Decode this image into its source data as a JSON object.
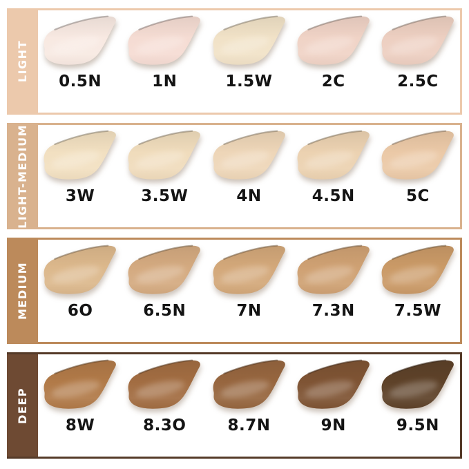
{
  "chart_data": {
    "type": "table",
    "description": "Foundation shade swatch chart: 4 depth categories x 5 shades",
    "rows": [
      {
        "category": "LIGHT",
        "band_color": "#ecc9ac",
        "border_color": "#ecc9ac",
        "shades": [
          {
            "label": "0.5N",
            "color": "#f8e9e2"
          },
          {
            "label": "1N",
            "color": "#f5dcd3"
          },
          {
            "label": "1.5W",
            "color": "#f1e2c7"
          },
          {
            "label": "2C",
            "color": "#f0d3c6"
          },
          {
            "label": "2.5C",
            "color": "#edcfc1"
          }
        ]
      },
      {
        "category": "LIGHT-MEDIUM",
        "band_color": "#d9b28e",
        "border_color": "#d9b28e",
        "shades": [
          {
            "label": "3W",
            "color": "#f2e0c1"
          },
          {
            "label": "3.5W",
            "color": "#f0dcbc"
          },
          {
            "label": "4N",
            "color": "#eed6b8"
          },
          {
            "label": "4.5N",
            "color": "#ecd2b1"
          },
          {
            "label": "5C",
            "color": "#ebc9a7"
          }
        ]
      },
      {
        "category": "MEDIUM",
        "band_color": "#bc8a5b",
        "border_color": "#bc8a5b",
        "shades": [
          {
            "label": "6O",
            "color": "#dcb88c"
          },
          {
            "label": "6.5N",
            "color": "#d4aa80"
          },
          {
            "label": "7N",
            "color": "#d3a87a"
          },
          {
            "label": "7.3N",
            "color": "#cfa173"
          },
          {
            "label": "7.5W",
            "color": "#ca9a67"
          }
        ]
      },
      {
        "category": "DEEP",
        "band_color": "#6e4a33",
        "border_color": "#553a28",
        "shades": [
          {
            "label": "8W",
            "color": "#b17a48"
          },
          {
            "label": "8.3O",
            "color": "#a26d42"
          },
          {
            "label": "8.7N",
            "color": "#97663f"
          },
          {
            "label": "9N",
            "color": "#7f5434"
          },
          {
            "label": "9.5N",
            "color": "#5e4229"
          }
        ]
      }
    ]
  }
}
